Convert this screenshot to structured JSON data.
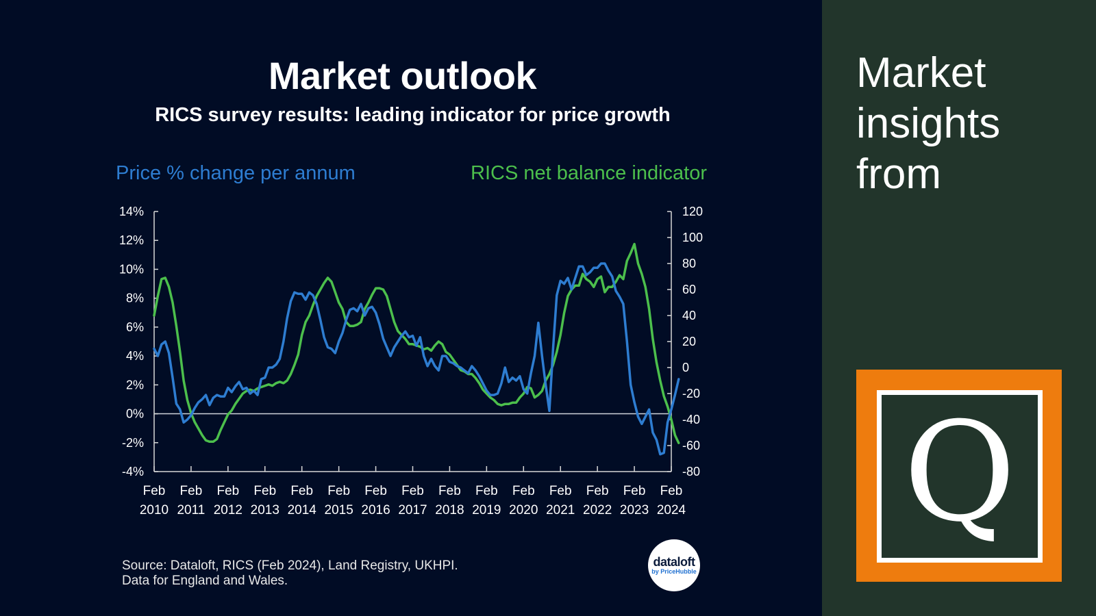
{
  "header": {
    "title": "Market outlook",
    "subtitle": "RICS survey results: leading indicator for price growth"
  },
  "colors": {
    "background": "#010c25",
    "price_series": "#2e7dd1",
    "rics_series": "#4cbf4c",
    "sidebar": "#22352b",
    "logo_orange": "#ee7c0e"
  },
  "chart_data": {
    "type": "line",
    "left_axis_title": "Price % change per annum",
    "right_axis_title": "RICS net balance indicator",
    "left_axis": {
      "min": -4,
      "max": 14,
      "step": 2,
      "suffix": "%",
      "tick_labels": [
        "14%",
        "12%",
        "10%",
        "8%",
        "6%",
        "4%",
        "2%",
        "0%",
        "-2%",
        "-4%"
      ]
    },
    "right_axis": {
      "min": -80,
      "max": 120,
      "step": 20,
      "tick_labels": [
        "120",
        "100",
        "80",
        "60",
        "40",
        "20",
        "0",
        "-20",
        "-40",
        "-60",
        "-80"
      ]
    },
    "x_ticks": [
      [
        "Feb",
        "2010"
      ],
      [
        "Feb",
        "2011"
      ],
      [
        "Feb",
        "2012"
      ],
      [
        "Feb",
        "2013"
      ],
      [
        "Feb",
        "2014"
      ],
      [
        "Feb",
        "2015"
      ],
      [
        "Feb",
        "2016"
      ],
      [
        "Feb",
        "2017"
      ],
      [
        "Feb",
        "2018"
      ],
      [
        "Feb",
        "2019"
      ],
      [
        "Feb",
        "2020"
      ],
      [
        "Feb",
        "2021"
      ],
      [
        "Feb",
        "2022"
      ],
      [
        "Feb",
        "2023"
      ],
      [
        "Feb",
        "2024"
      ]
    ],
    "x_range": [
      2010.0,
      2024.0
    ],
    "zero_line": 0,
    "series": [
      {
        "name": "Price % change per annum",
        "axis": "left",
        "color": "#2e7dd1",
        "points": [
          [
            2010.0,
            4.5
          ],
          [
            2010.1,
            4.0
          ],
          [
            2010.2,
            4.8
          ],
          [
            2010.3,
            5.0
          ],
          [
            2010.4,
            4.2
          ],
          [
            2010.5,
            2.5
          ],
          [
            2010.6,
            0.7
          ],
          [
            2010.7,
            0.3
          ],
          [
            2010.8,
            -0.6
          ],
          [
            2010.9,
            -0.4
          ],
          [
            2011.0,
            -0.1
          ],
          [
            2011.1,
            0.4
          ],
          [
            2011.2,
            0.8
          ],
          [
            2011.3,
            1.0
          ],
          [
            2011.4,
            1.3
          ],
          [
            2011.5,
            0.6
          ],
          [
            2011.6,
            1.1
          ],
          [
            2011.7,
            1.3
          ],
          [
            2011.8,
            1.2
          ],
          [
            2011.9,
            1.2
          ],
          [
            2012.0,
            1.8
          ],
          [
            2012.1,
            1.5
          ],
          [
            2012.2,
            1.9
          ],
          [
            2012.3,
            2.2
          ],
          [
            2012.4,
            1.7
          ],
          [
            2012.5,
            1.8
          ],
          [
            2012.6,
            1.4
          ],
          [
            2012.7,
            1.6
          ],
          [
            2012.8,
            1.3
          ],
          [
            2012.9,
            2.4
          ],
          [
            2013.0,
            2.5
          ],
          [
            2013.1,
            3.2
          ],
          [
            2013.2,
            3.2
          ],
          [
            2013.3,
            3.4
          ],
          [
            2013.4,
            3.8
          ],
          [
            2013.5,
            5.0
          ],
          [
            2013.6,
            6.6
          ],
          [
            2013.7,
            7.8
          ],
          [
            2013.8,
            8.4
          ],
          [
            2013.9,
            8.3
          ],
          [
            2014.0,
            8.3
          ],
          [
            2014.1,
            7.9
          ],
          [
            2014.2,
            8.4
          ],
          [
            2014.3,
            8.2
          ],
          [
            2014.4,
            7.6
          ],
          [
            2014.5,
            6.5
          ],
          [
            2014.6,
            5.3
          ],
          [
            2014.7,
            4.6
          ],
          [
            2014.8,
            4.5
          ],
          [
            2014.9,
            4.2
          ],
          [
            2015.0,
            5.0
          ],
          [
            2015.1,
            5.6
          ],
          [
            2015.2,
            6.5
          ],
          [
            2015.3,
            7.2
          ],
          [
            2015.4,
            7.3
          ],
          [
            2015.5,
            7.1
          ],
          [
            2015.6,
            7.6
          ],
          [
            2015.7,
            6.8
          ],
          [
            2015.8,
            7.3
          ],
          [
            2015.9,
            7.4
          ],
          [
            2016.0,
            7.0
          ],
          [
            2016.1,
            6.2
          ],
          [
            2016.2,
            5.2
          ],
          [
            2016.3,
            4.6
          ],
          [
            2016.4,
            4.0
          ],
          [
            2016.5,
            4.6
          ],
          [
            2016.6,
            5.0
          ],
          [
            2016.7,
            5.4
          ],
          [
            2016.8,
            5.7
          ],
          [
            2016.9,
            5.3
          ],
          [
            2017.0,
            5.4
          ],
          [
            2017.1,
            4.7
          ],
          [
            2017.2,
            5.3
          ],
          [
            2017.3,
            4.0
          ],
          [
            2017.4,
            3.3
          ],
          [
            2017.5,
            3.8
          ],
          [
            2017.6,
            3.3
          ],
          [
            2017.7,
            3.0
          ],
          [
            2017.8,
            4.0
          ],
          [
            2017.9,
            4.0
          ],
          [
            2018.0,
            3.6
          ],
          [
            2018.1,
            3.5
          ],
          [
            2018.2,
            3.3
          ],
          [
            2018.3,
            3.2
          ],
          [
            2018.4,
            3.0
          ],
          [
            2018.5,
            2.8
          ],
          [
            2018.6,
            3.3
          ],
          [
            2018.7,
            3.0
          ],
          [
            2018.8,
            2.6
          ],
          [
            2018.9,
            2.1
          ],
          [
            2019.0,
            1.6
          ],
          [
            2019.1,
            1.3
          ],
          [
            2019.2,
            1.3
          ],
          [
            2019.3,
            1.4
          ],
          [
            2019.4,
            2.1
          ],
          [
            2019.5,
            3.2
          ],
          [
            2019.6,
            2.2
          ],
          [
            2019.7,
            2.5
          ],
          [
            2019.8,
            2.3
          ],
          [
            2019.9,
            2.6
          ],
          [
            2020.0,
            1.7
          ],
          [
            2020.1,
            1.4
          ],
          [
            2020.2,
            2.8
          ],
          [
            2020.3,
            4.0
          ],
          [
            2020.4,
            6.3
          ],
          [
            2020.5,
            4.0
          ],
          [
            2020.6,
            2.0
          ],
          [
            2020.7,
            0.2
          ],
          [
            2020.8,
            4.5
          ],
          [
            2020.9,
            8.2
          ],
          [
            2021.0,
            9.2
          ],
          [
            2021.1,
            9.0
          ],
          [
            2021.2,
            9.4
          ],
          [
            2021.3,
            8.6
          ],
          [
            2021.4,
            9.4
          ],
          [
            2021.5,
            10.2
          ],
          [
            2021.6,
            10.2
          ],
          [
            2021.7,
            9.6
          ],
          [
            2021.8,
            9.8
          ],
          [
            2021.9,
            10.1
          ],
          [
            2022.0,
            10.1
          ],
          [
            2022.1,
            10.4
          ],
          [
            2022.2,
            10.4
          ],
          [
            2022.3,
            9.9
          ],
          [
            2022.4,
            9.5
          ],
          [
            2022.5,
            8.5
          ],
          [
            2022.6,
            8.1
          ],
          [
            2022.7,
            7.6
          ],
          [
            2022.8,
            5.0
          ],
          [
            2022.9,
            2.0
          ],
          [
            2023.0,
            0.8
          ],
          [
            2023.1,
            -0.2
          ],
          [
            2023.2,
            -0.7
          ],
          [
            2023.3,
            -0.2
          ],
          [
            2023.4,
            0.3
          ],
          [
            2023.5,
            -1.3
          ],
          [
            2023.6,
            -1.8
          ],
          [
            2023.7,
            -2.8
          ],
          [
            2023.8,
            -2.7
          ],
          [
            2023.9,
            -0.6
          ],
          [
            2024.0,
            0.3
          ],
          [
            2024.1,
            1.3
          ],
          [
            2024.2,
            2.4
          ]
        ]
      },
      {
        "name": "RICS net balance indicator",
        "axis": "right",
        "color": "#4cbf4c",
        "points": [
          [
            2010.0,
            40
          ],
          [
            2010.1,
            55
          ],
          [
            2010.2,
            68
          ],
          [
            2010.3,
            69
          ],
          [
            2010.4,
            62
          ],
          [
            2010.5,
            50
          ],
          [
            2010.6,
            32
          ],
          [
            2010.7,
            12
          ],
          [
            2010.8,
            -10
          ],
          [
            2010.9,
            -25
          ],
          [
            2011.0,
            -35
          ],
          [
            2011.1,
            -42
          ],
          [
            2011.2,
            -47
          ],
          [
            2011.3,
            -52
          ],
          [
            2011.4,
            -56
          ],
          [
            2011.5,
            -57
          ],
          [
            2011.6,
            -57
          ],
          [
            2011.7,
            -55
          ],
          [
            2011.8,
            -48
          ],
          [
            2011.9,
            -42
          ],
          [
            2012.0,
            -36
          ],
          [
            2012.1,
            -33
          ],
          [
            2012.2,
            -28
          ],
          [
            2012.3,
            -24
          ],
          [
            2012.4,
            -20
          ],
          [
            2012.5,
            -18
          ],
          [
            2012.6,
            -17
          ],
          [
            2012.7,
            -18
          ],
          [
            2012.8,
            -16
          ],
          [
            2012.9,
            -15
          ],
          [
            2013.0,
            -14
          ],
          [
            2013.1,
            -13
          ],
          [
            2013.2,
            -14
          ],
          [
            2013.3,
            -12
          ],
          [
            2013.4,
            -11
          ],
          [
            2013.5,
            -12
          ],
          [
            2013.6,
            -10
          ],
          [
            2013.7,
            -5
          ],
          [
            2013.8,
            2
          ],
          [
            2013.9,
            10
          ],
          [
            2014.0,
            25
          ],
          [
            2014.1,
            35
          ],
          [
            2014.2,
            40
          ],
          [
            2014.3,
            48
          ],
          [
            2014.4,
            55
          ],
          [
            2014.5,
            60
          ],
          [
            2014.6,
            65
          ],
          [
            2014.7,
            69
          ],
          [
            2014.8,
            66
          ],
          [
            2014.9,
            58
          ],
          [
            2015.0,
            50
          ],
          [
            2015.1,
            45
          ],
          [
            2015.2,
            35
          ],
          [
            2015.3,
            32
          ],
          [
            2015.4,
            32
          ],
          [
            2015.5,
            33
          ],
          [
            2015.6,
            35
          ],
          [
            2015.7,
            45
          ],
          [
            2015.8,
            50
          ],
          [
            2015.9,
            56
          ],
          [
            2016.0,
            61
          ],
          [
            2016.1,
            61
          ],
          [
            2016.2,
            60
          ],
          [
            2016.3,
            55
          ],
          [
            2016.4,
            45
          ],
          [
            2016.5,
            35
          ],
          [
            2016.6,
            28
          ],
          [
            2016.7,
            25
          ],
          [
            2016.8,
            22
          ],
          [
            2016.9,
            18
          ],
          [
            2017.0,
            18
          ],
          [
            2017.1,
            17
          ],
          [
            2017.2,
            16
          ],
          [
            2017.3,
            14
          ],
          [
            2017.4,
            15
          ],
          [
            2017.5,
            13
          ],
          [
            2017.6,
            17
          ],
          [
            2017.7,
            20
          ],
          [
            2017.8,
            18
          ],
          [
            2017.9,
            12
          ],
          [
            2018.0,
            10
          ],
          [
            2018.1,
            6
          ],
          [
            2018.2,
            2
          ],
          [
            2018.3,
            -2
          ],
          [
            2018.4,
            -3
          ],
          [
            2018.5,
            -5
          ],
          [
            2018.6,
            -5
          ],
          [
            2018.7,
            -8
          ],
          [
            2018.8,
            -12
          ],
          [
            2018.9,
            -17
          ],
          [
            2019.0,
            -20
          ],
          [
            2019.1,
            -23
          ],
          [
            2019.2,
            -25
          ],
          [
            2019.3,
            -28
          ],
          [
            2019.4,
            -29
          ],
          [
            2019.5,
            -28
          ],
          [
            2019.6,
            -28
          ],
          [
            2019.7,
            -27
          ],
          [
            2019.8,
            -27
          ],
          [
            2019.9,
            -23
          ],
          [
            2020.0,
            -20
          ],
          [
            2020.1,
            -15
          ],
          [
            2020.2,
            -16
          ],
          [
            2020.3,
            -23
          ],
          [
            2020.4,
            -21
          ],
          [
            2020.5,
            -18
          ],
          [
            2020.6,
            -10
          ],
          [
            2020.7,
            -5
          ],
          [
            2020.8,
            2
          ],
          [
            2020.9,
            12
          ],
          [
            2021.0,
            25
          ],
          [
            2021.1,
            42
          ],
          [
            2021.2,
            55
          ],
          [
            2021.3,
            60
          ],
          [
            2021.4,
            63
          ],
          [
            2021.5,
            63
          ],
          [
            2021.6,
            72
          ],
          [
            2021.7,
            68
          ],
          [
            2021.8,
            66
          ],
          [
            2021.9,
            62
          ],
          [
            2022.0,
            68
          ],
          [
            2022.1,
            70
          ],
          [
            2022.2,
            58
          ],
          [
            2022.3,
            62
          ],
          [
            2022.4,
            62
          ],
          [
            2022.5,
            66
          ],
          [
            2022.6,
            71
          ],
          [
            2022.7,
            68
          ],
          [
            2022.8,
            82
          ],
          [
            2022.9,
            88
          ],
          [
            2023.0,
            95
          ],
          [
            2023.1,
            80
          ],
          [
            2023.2,
            72
          ],
          [
            2023.3,
            62
          ],
          [
            2023.4,
            45
          ],
          [
            2023.5,
            22
          ],
          [
            2023.6,
            4
          ],
          [
            2023.7,
            -10
          ],
          [
            2023.8,
            -22
          ],
          [
            2023.9,
            -30
          ],
          [
            2024.0,
            -40
          ],
          [
            2024.1,
            -52
          ],
          [
            2024.2,
            -58
          ]
        ]
      }
    ]
  },
  "footer": {
    "source_line1": "Source: Dataloft, RICS (Feb 2024), Land Registry, UKHPI.",
    "source_line2": "Data for England and Wales."
  },
  "badge": {
    "main": "dataloft",
    "sub": "by PriceHubble"
  },
  "sidebar": {
    "line1": "Market",
    "line2": "insights",
    "line3": "from",
    "logo_letter": "Q"
  }
}
